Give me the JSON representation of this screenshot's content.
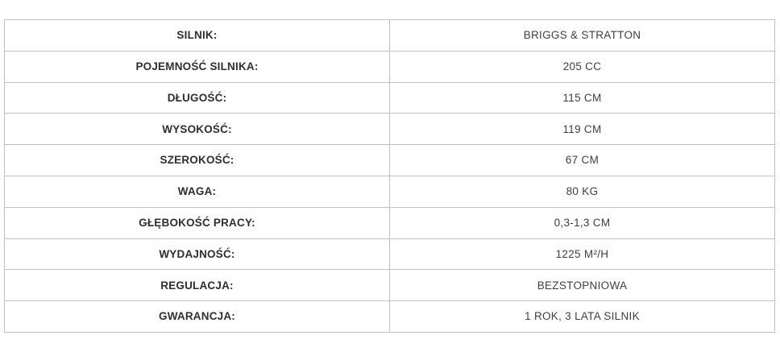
{
  "colors": {
    "background": "#ffffff",
    "border": "#c1c1c1",
    "label_text": "#2f2f2f",
    "value_text": "#404040"
  },
  "table": {
    "rows": [
      {
        "label": "SILNIK:",
        "value": "BRIGGS & STRATTON"
      },
      {
        "label": "POJEMNOŚĆ SILNIKA:",
        "value": "205 CC"
      },
      {
        "label": "DŁUGOŚĆ:",
        "value": "115 CM"
      },
      {
        "label": "WYSOKOŚĆ:",
        "value": "119 CM"
      },
      {
        "label": "SZEROKOŚĆ:",
        "value": "67 CM"
      },
      {
        "label": "WAGA:",
        "value": "80 KG"
      },
      {
        "label": "GŁĘBOKOŚĆ PRACY:",
        "value": "0,3-1,3 CM"
      },
      {
        "label": "WYDAJNOŚĆ:",
        "value": "1225 M²/H"
      },
      {
        "label": "REGULACJA:",
        "value": "BEZSTOPNIOWA"
      },
      {
        "label": "GWARANCJA:",
        "value": "1 ROK, 3 LATA SILNIK"
      }
    ]
  }
}
